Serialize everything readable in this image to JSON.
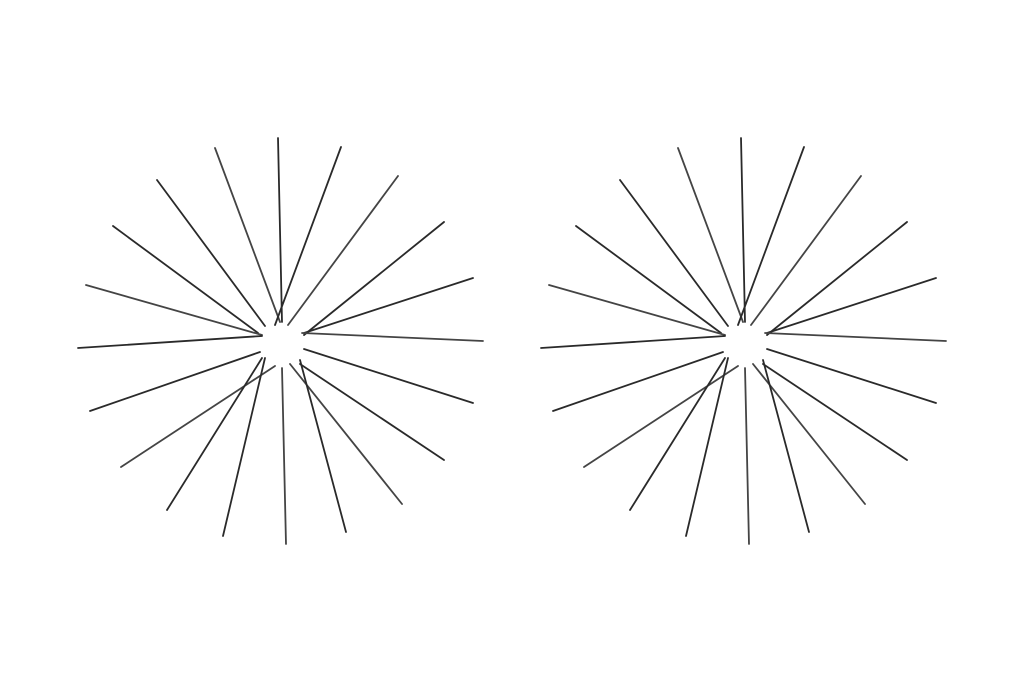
{
  "figures": [
    {
      "label": "",
      "shape": "starburst",
      "ray_count": 20
    },
    {
      "label": "",
      "shape": "starburst",
      "ray_count": 20
    }
  ],
  "colors": {
    "background": "#ffffff",
    "ray": "#2a2a2a"
  }
}
